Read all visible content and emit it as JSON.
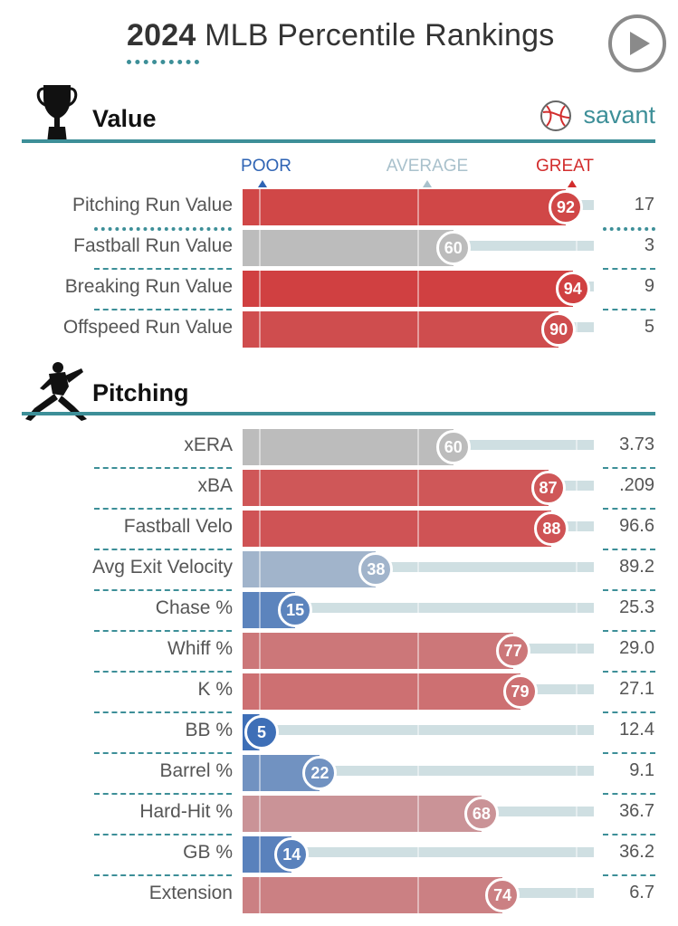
{
  "header": {
    "title_year": "2024",
    "title_rest": " MLB Percentile Rankings",
    "play_button": "play-icon"
  },
  "value_section": {
    "title": "Value",
    "icon": "trophy-icon",
    "brand": "savant",
    "brand_icon": "baseball-icon"
  },
  "pitching_section": {
    "title": "Pitching",
    "icon": "pitcher-icon"
  },
  "legend": {
    "poor": "POOR",
    "average": "AVERAGE",
    "great": "GREAT"
  },
  "colors": {
    "accent": "#3d8f98",
    "poor": "#2f64b4",
    "average": "#a9c1cc",
    "great": "#d22d2d",
    "neutral": "#bcbcbc"
  },
  "chart_data": [
    {
      "type": "bar",
      "section": "Value",
      "categories": [
        "Pitching Run Value",
        "Fastball Run Value",
        "Breaking Run Value",
        "Offspeed Run Value"
      ],
      "percentiles": [
        92,
        60,
        94,
        90
      ],
      "values": [
        "17",
        "3",
        "9",
        "5"
      ],
      "neutral": [
        false,
        true,
        false,
        false
      ],
      "xlim": [
        0,
        100
      ]
    },
    {
      "type": "bar",
      "section": "Pitching",
      "categories": [
        "xERA",
        "xBA",
        "Fastball Velo",
        "Avg Exit Velocity",
        "Chase %",
        "Whiff %",
        "K %",
        "BB %",
        "Barrel %",
        "Hard-Hit %",
        "GB %",
        "Extension"
      ],
      "percentiles": [
        60,
        87,
        88,
        38,
        15,
        77,
        79,
        5,
        22,
        68,
        14,
        74
      ],
      "values": [
        "3.73",
        ".209",
        "96.6",
        "89.2",
        "25.3",
        "29.0",
        "27.1",
        "12.4",
        "9.1",
        "36.7",
        "36.2",
        "6.7"
      ],
      "neutral": [
        true,
        false,
        false,
        false,
        false,
        false,
        false,
        false,
        false,
        false,
        false,
        false
      ],
      "xlim": [
        0,
        100
      ]
    }
  ]
}
